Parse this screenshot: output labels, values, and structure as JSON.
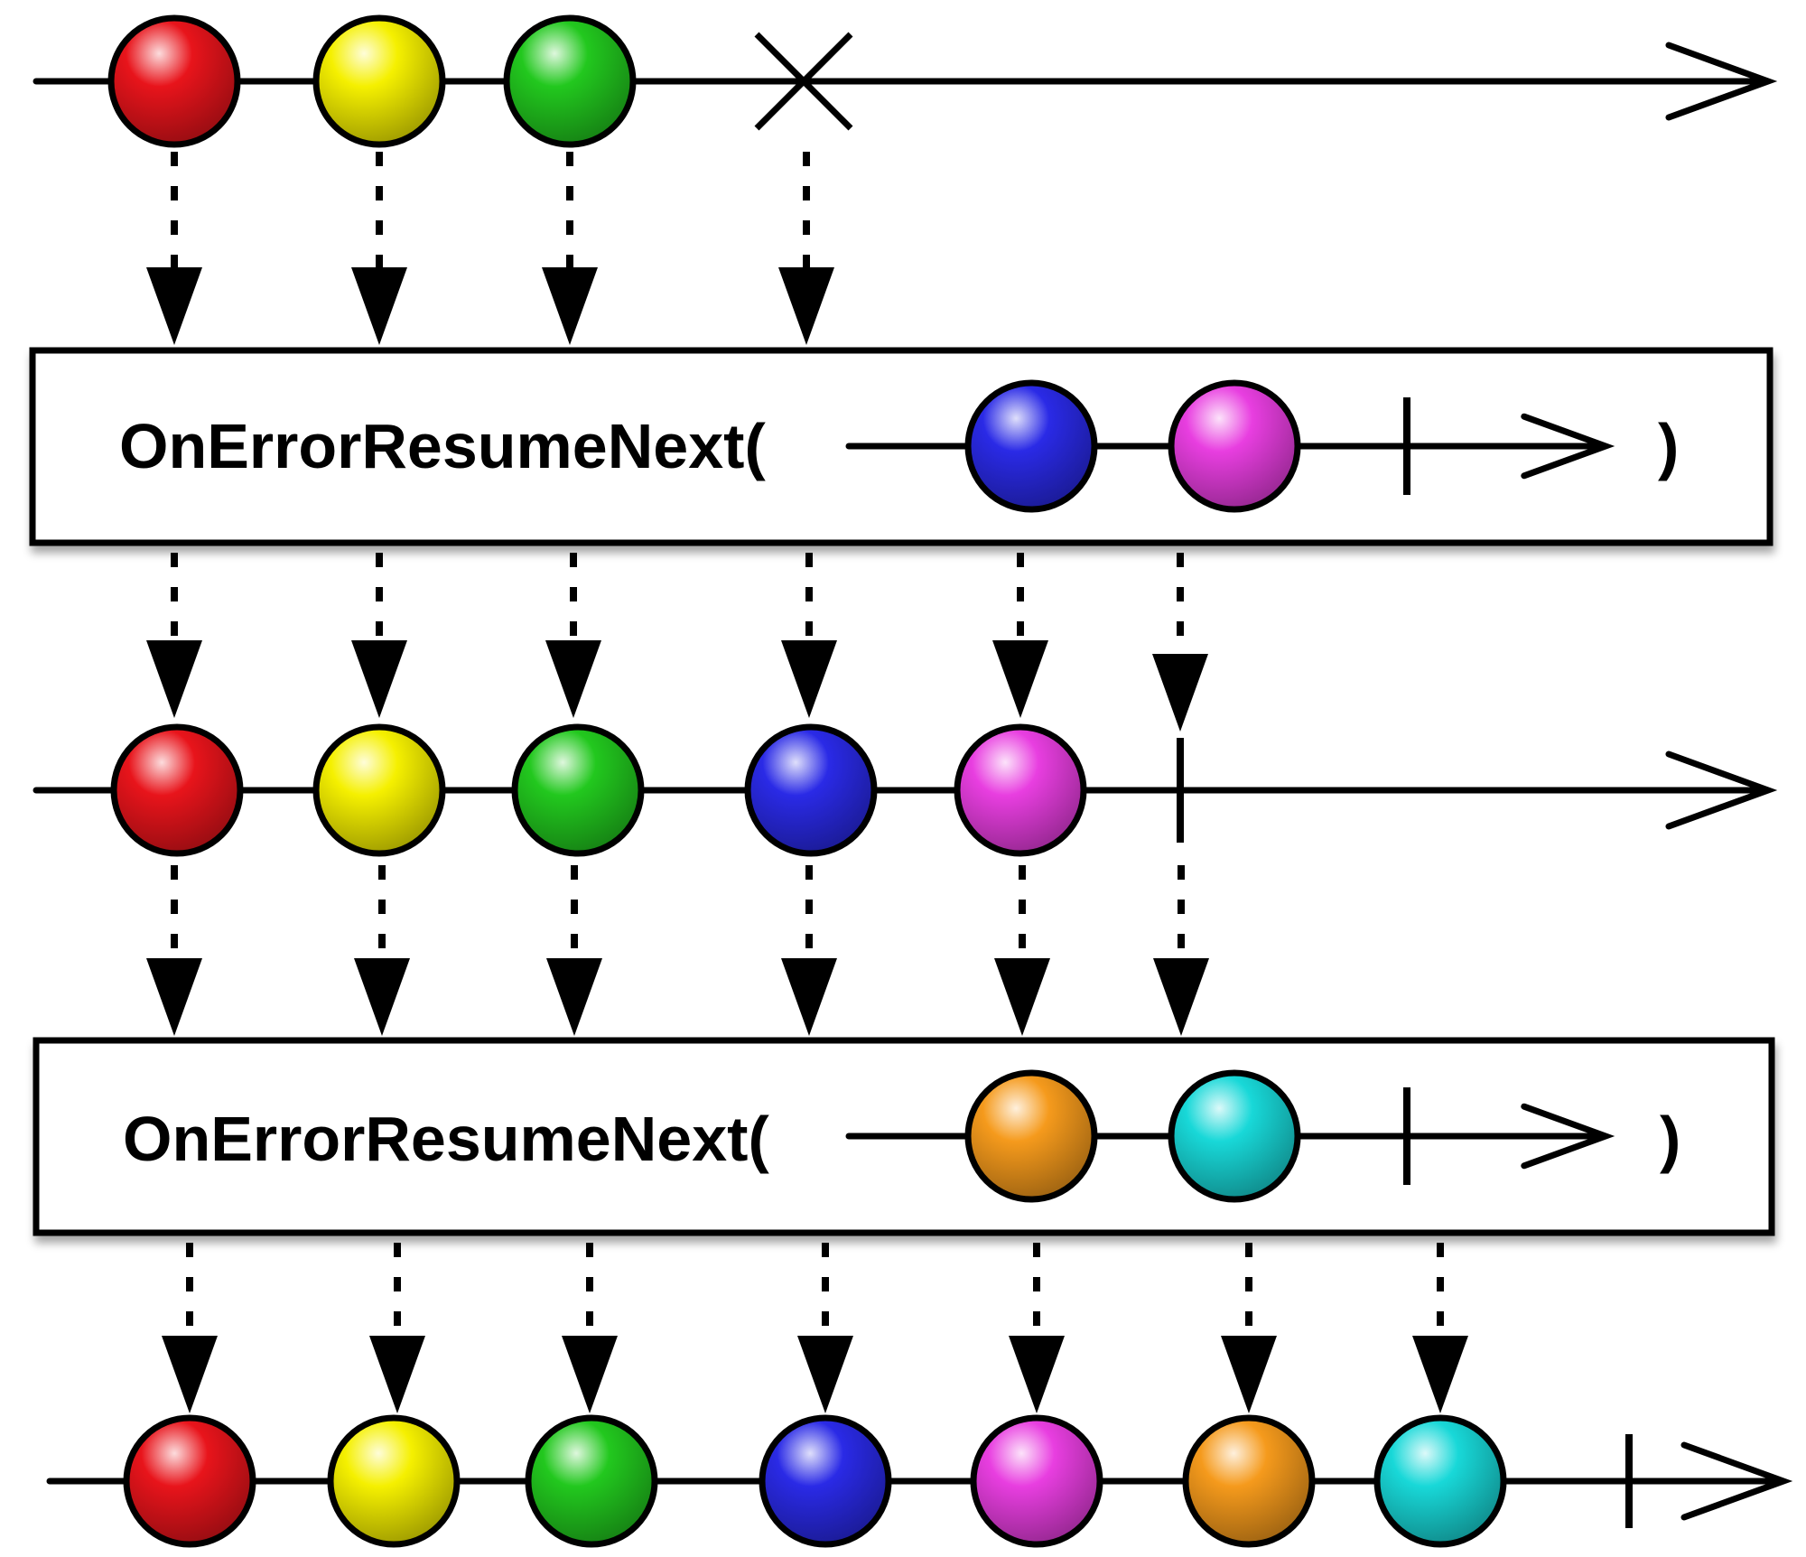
{
  "colors": {
    "red": "#e8141b",
    "yellow": "#f5f000",
    "green": "#22c81e",
    "blue": "#2a2ae6",
    "magenta": "#e83ee0",
    "orange": "#f59a1c",
    "cyan": "#18d8d8",
    "ink": "#000000",
    "box_fill": "#ffffff"
  },
  "operator_1": {
    "label": "OnErrorResumeNext(",
    "close": ")",
    "inner_marbles": [
      "blue",
      "magenta"
    ],
    "ends_with": "completed"
  },
  "operator_2": {
    "label": "OnErrorResumeNext(",
    "close": ")",
    "inner_marbles": [
      "orange",
      "cyan"
    ],
    "ends_with": "completed"
  },
  "timelines": {
    "source": {
      "marbles": [
        "red",
        "yellow",
        "green"
      ],
      "ends_with": "error"
    },
    "intermediate": {
      "marbles": [
        "red",
        "yellow",
        "green",
        "blue",
        "magenta"
      ],
      "ends_with": "completed"
    },
    "result": {
      "marbles": [
        "red",
        "yellow",
        "green",
        "blue",
        "magenta",
        "orange",
        "cyan"
      ],
      "ends_with": "completed"
    }
  }
}
